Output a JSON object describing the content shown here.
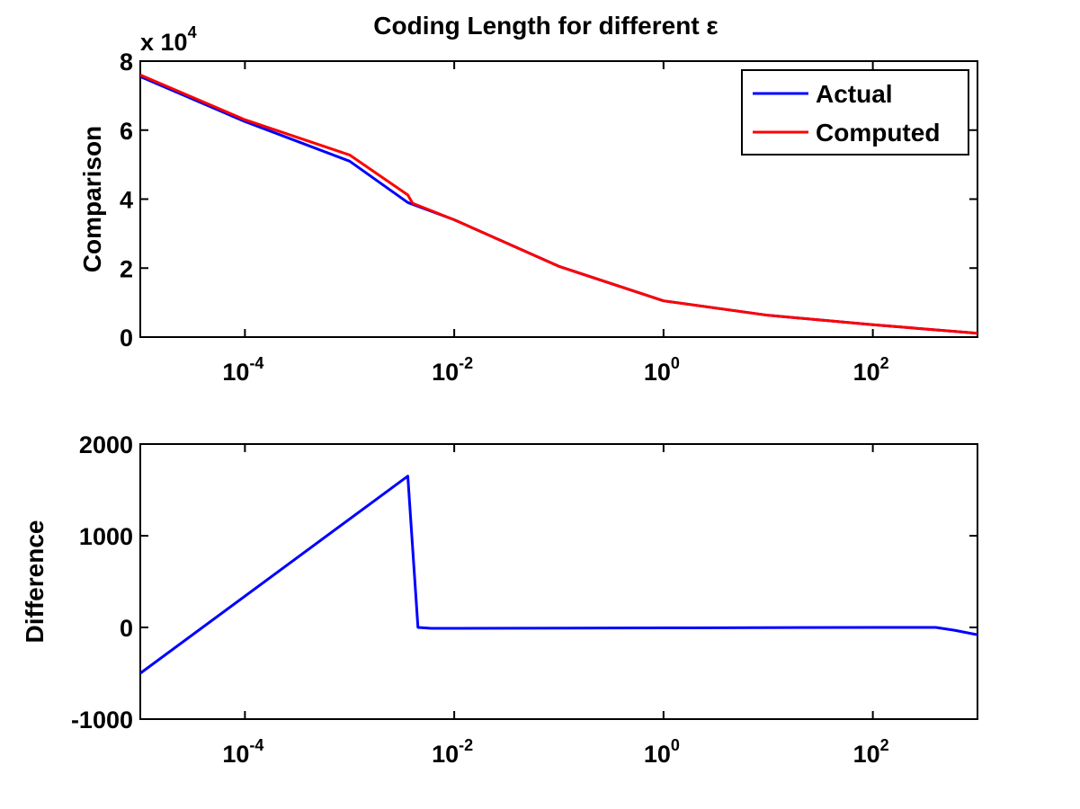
{
  "chart_data": [
    {
      "type": "line",
      "title": "Coding Length for different ε",
      "ylabel": "Comparison",
      "y_exponent_label": "x 10",
      "y_exponent": "4",
      "xscale": "log",
      "xlim": [
        1e-05,
        1000
      ],
      "ylim": [
        0,
        80000
      ],
      "xticks": [
        {
          "base": "10",
          "exp": "-4"
        },
        {
          "base": "10",
          "exp": "-2"
        },
        {
          "base": "10",
          "exp": "0"
        },
        {
          "base": "10",
          "exp": "2"
        }
      ],
      "xtick_values": [
        0.0001,
        0.01,
        1,
        100
      ],
      "yticks": [
        "0",
        "2",
        "4",
        "6",
        "8"
      ],
      "ytick_values": [
        0,
        20000,
        40000,
        60000,
        80000
      ],
      "legend_position": "top-right",
      "series": [
        {
          "name": "Actual",
          "color": "#0000ff",
          "x": [
            1e-05,
            0.0001,
            0.001,
            0.0036,
            0.01,
            0.1,
            1,
            10,
            100,
            1000
          ],
          "y": [
            75500,
            62500,
            51000,
            39000,
            34000,
            20500,
            10500,
            6300,
            3600,
            1100
          ]
        },
        {
          "name": "Computed",
          "color": "#ff0000",
          "x": [
            1e-05,
            0.0001,
            0.001,
            0.0036,
            0.004,
            0.01,
            0.1,
            1,
            10,
            100,
            1000
          ],
          "y": [
            76000,
            63000,
            52800,
            41200,
            38800,
            34000,
            20500,
            10500,
            6300,
            3600,
            1100
          ]
        }
      ]
    },
    {
      "type": "line",
      "ylabel": "Difference",
      "xscale": "log",
      "xlim": [
        1e-05,
        1000
      ],
      "ylim": [
        -1000,
        2000
      ],
      "xticks": [
        {
          "base": "10",
          "exp": "-4"
        },
        {
          "base": "10",
          "exp": "-2"
        },
        {
          "base": "10",
          "exp": "0"
        },
        {
          "base": "10",
          "exp": "2"
        }
      ],
      "xtick_values": [
        0.0001,
        0.01,
        1,
        100
      ],
      "yticks": [
        "-1000",
        "0",
        "1000",
        "2000"
      ],
      "ytick_values": [
        -1000,
        0,
        1000,
        2000
      ],
      "series": [
        {
          "color": "#0000ff",
          "x": [
            1e-05,
            0.0036,
            0.0045,
            0.006,
            1,
            100,
            400,
            600,
            1000
          ],
          "y": [
            -500,
            1650,
            0,
            -10,
            -5,
            0,
            0,
            -30,
            -80
          ]
        }
      ]
    }
  ]
}
